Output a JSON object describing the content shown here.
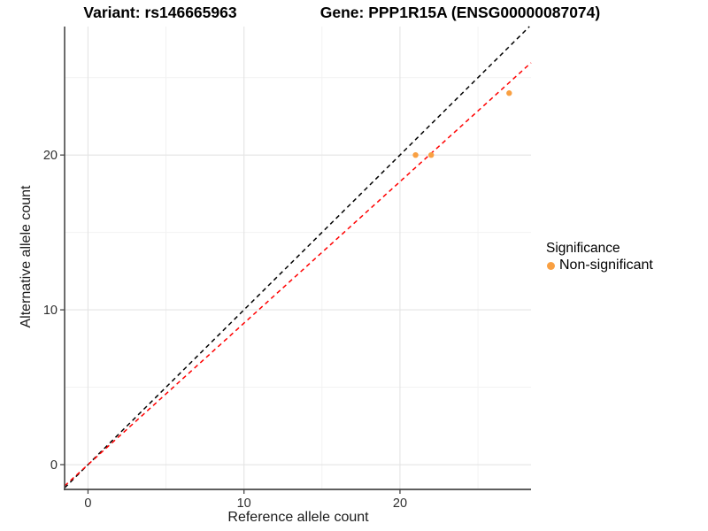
{
  "titles": {
    "left": "Variant: rs146665963",
    "right": "Gene: PPP1R15A (ENSG00000087074)"
  },
  "axes": {
    "x_label": "Reference allele count",
    "y_label": "Alternative allele count"
  },
  "legend": {
    "title": "Significance",
    "position": "right",
    "items": [
      {
        "label": "Non-significant",
        "color": "#F9A042"
      }
    ]
  },
  "colors": {
    "background": "#FFFFFF",
    "grid_major": "#E4E4E4",
    "grid_minor": "#F2F2F2",
    "axis_line": "#474747",
    "tick_label": "#2e2e2e",
    "identity_line": "#000000",
    "ratio_line": "#FF0000",
    "point": "#F9A042"
  },
  "chart_data": {
    "type": "scatter",
    "title": "Variant: rs146665963 — Gene: PPP1R15A (ENSG00000087074)",
    "xlabel": "Reference allele count",
    "ylabel": "Alternative allele count",
    "xlim": [
      -1.5,
      28.4
    ],
    "ylim": [
      -1.6,
      28.3
    ],
    "x_ticks": [
      0,
      10,
      20
    ],
    "y_ticks": [
      0,
      10,
      20
    ],
    "x_minor_ticks": [
      5,
      15,
      25
    ],
    "y_minor_ticks": [
      5,
      15,
      25
    ],
    "grid": true,
    "legend_position": "right",
    "series": [
      {
        "name": "Non-significant",
        "color": "#F9A042",
        "marker_radius": 3.2,
        "points": [
          [
            21,
            20
          ],
          [
            22,
            20
          ],
          [
            27,
            24
          ]
        ]
      }
    ],
    "lines": [
      {
        "name": "identity-line",
        "slope": 1.0,
        "intercept": 0,
        "color": "#000000",
        "dash": "5,4"
      },
      {
        "name": "ratio-line",
        "slope": 0.914,
        "intercept": 0,
        "color": "#FF0000",
        "dash": "5,4"
      }
    ]
  }
}
